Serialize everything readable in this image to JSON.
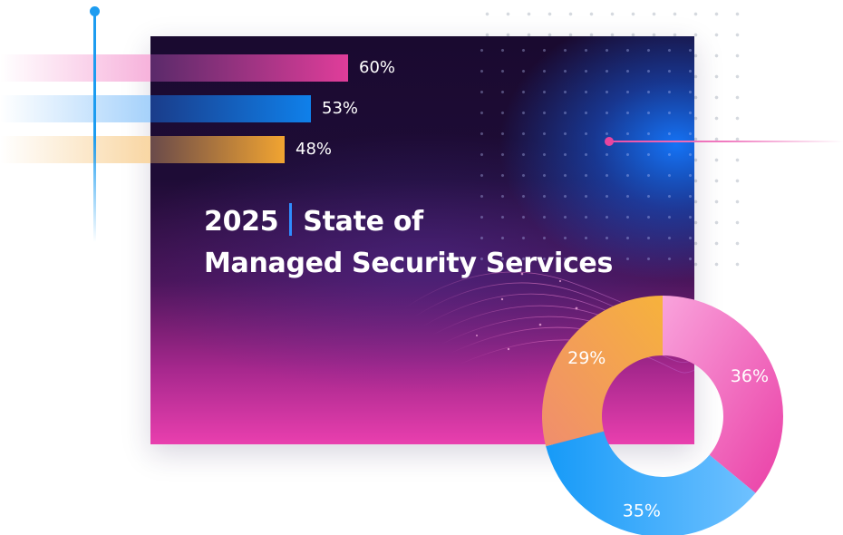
{
  "card": {
    "year": "2025",
    "title_line1": "State of",
    "title_line2": "Managed Security Services"
  },
  "colors": {
    "pink": "#e9479f",
    "blue": "#1386f0",
    "orange": "#f3a936",
    "connector_blue": "#1d9cf0",
    "connector_pink": "#ea4fa8",
    "title_separator": "#2f8dff"
  },
  "chart_data": [
    {
      "type": "bar",
      "orientation": "horizontal",
      "values": [
        60,
        53,
        48
      ],
      "labels": [
        "60%",
        "53%",
        "48%"
      ],
      "colors": [
        "#e9479f",
        "#1386f0",
        "#f3a936"
      ],
      "xlim": [
        0,
        100
      ],
      "grid": false
    },
    {
      "type": "pie",
      "donut": true,
      "values": [
        36,
        35,
        29
      ],
      "labels": [
        "36%",
        "35%",
        "29%"
      ],
      "colors": [
        "#f05fb6",
        "#2f9cf5",
        "#f29a55"
      ]
    }
  ]
}
